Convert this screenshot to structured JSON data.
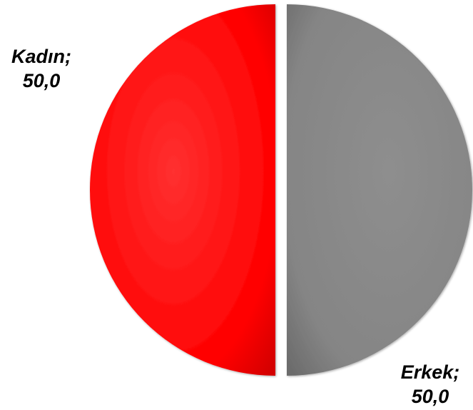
{
  "chart_data": {
    "type": "pie",
    "title": "",
    "slices": [
      {
        "label": "Kadın",
        "value": 50.0,
        "value_text": "50,0",
        "color": "#ff0000",
        "label_text": "Kadın;"
      },
      {
        "label": "Erkek",
        "value": 50.0,
        "value_text": "50,0",
        "color": "#808080",
        "label_text": "Erkek;"
      }
    ],
    "exploded": true,
    "legend": "none",
    "data_labels": "outside"
  }
}
